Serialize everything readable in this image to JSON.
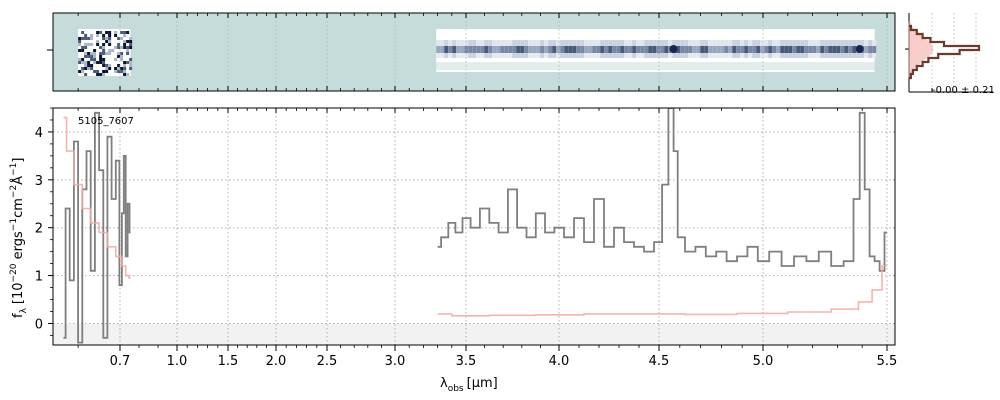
{
  "chart_data": [
    {
      "type": "heatmap",
      "panel": "2d-spectrum",
      "background_color": "#c5dcda",
      "trace_color": "#1a2550",
      "segments": [
        {
          "x_range": [
            0.6,
            0.755
          ],
          "kind": "noise"
        },
        {
          "x_range": [
            3.29,
            5.45
          ],
          "kind": "trace"
        }
      ],
      "bright_knots_um": [
        4.57,
        5.39
      ]
    },
    {
      "type": "line",
      "panel": "1d-spectrum",
      "label": "5105_7607",
      "xlabel_main": "λ",
      "xlabel_sub": "obs",
      "xlabel_unit": "[μm]",
      "ylabel": "f_λ [10^-20 ergs^-1cm^-2Å^-1]",
      "ylabel_parts": {
        "f": "f",
        "lambda": "λ",
        "bracket_open": "[10",
        "exp1": "−20",
        "ergs": " ergs",
        "exp2": "−1",
        "cm": "cm",
        "exp3": "−2",
        "ang": "Å",
        "exp4": "−1",
        "bracket_close": "]"
      },
      "ylim": [
        -0.45,
        4.5
      ],
      "yticks": [
        "0",
        "1",
        "2",
        "3",
        "4"
      ],
      "xticks_um": [
        0.7,
        1.0,
        1.5,
        2.0,
        2.5,
        3.0,
        3.5,
        4.0,
        4.5,
        5.0,
        5.5
      ],
      "xtick_labels": [
        "0.7",
        "1.0",
        "1.5",
        "2.0",
        "2.5",
        "3.0",
        "3.5",
        "4.0",
        "4.5",
        "5.0",
        "5.5"
      ],
      "grid": true,
      "series": [
        {
          "role": "flux",
          "color": "#7f7f7f",
          "x": [
            0.565,
            0.575,
            0.585,
            0.595,
            0.605,
            0.615,
            0.625,
            0.635,
            0.645,
            0.655,
            0.665,
            0.675,
            0.685,
            0.695,
            0.705,
            0.715,
            0.725,
            0.735,
            0.745,
            0.755,
            3.3,
            3.35,
            3.4,
            3.45,
            3.5,
            3.55,
            3.6,
            3.65,
            3.7,
            3.75,
            3.8,
            3.85,
            3.9,
            3.95,
            4.0,
            4.05,
            4.1,
            4.15,
            4.2,
            4.25,
            4.3,
            4.35,
            4.4,
            4.45,
            4.5,
            4.53,
            4.56,
            4.58,
            4.6,
            4.65,
            4.7,
            4.75,
            4.8,
            4.85,
            4.9,
            4.95,
            5.0,
            5.05,
            5.1,
            5.15,
            5.2,
            5.25,
            5.3,
            5.35,
            5.38,
            5.4,
            5.42,
            5.44,
            5.46,
            5.48,
            5.5
          ],
          "y": [
            -0.3,
            2.4,
            0.9,
            3.8,
            -0.4,
            2.8,
            3.6,
            1.1,
            4.4,
            3.2,
            -0.3,
            3.9,
            2.6,
            3.4,
            0.8,
            2.3,
            3.5,
            1.4,
            2.5,
            1.9,
            1.6,
            1.8,
            2.1,
            1.9,
            2.2,
            2.0,
            2.4,
            2.1,
            1.9,
            2.8,
            2.0,
            1.8,
            2.3,
            1.9,
            2.0,
            1.8,
            2.2,
            1.7,
            2.6,
            1.6,
            2.0,
            1.7,
            1.6,
            1.5,
            1.7,
            2.9,
            4.5,
            3.6,
            1.8,
            1.5,
            1.6,
            1.4,
            1.5,
            1.3,
            1.4,
            1.6,
            1.3,
            1.5,
            1.2,
            1.4,
            1.3,
            1.5,
            1.2,
            1.3,
            2.6,
            4.4,
            2.8,
            1.4,
            1.3,
            1.1,
            1.9
          ]
        },
        {
          "role": "error",
          "color": "#f4a7a3",
          "x": [
            0.565,
            0.58,
            0.6,
            0.62,
            0.64,
            0.66,
            0.68,
            0.7,
            0.72,
            0.74,
            0.755,
            3.3,
            3.5,
            3.75,
            4.0,
            4.25,
            4.5,
            4.75,
            5.0,
            5.2,
            5.35,
            5.42,
            5.46,
            5.5
          ],
          "y": [
            4.3,
            3.6,
            2.9,
            2.4,
            2.1,
            1.9,
            1.6,
            1.4,
            1.2,
            1.0,
            0.95,
            0.2,
            0.16,
            0.17,
            0.18,
            0.2,
            0.2,
            0.19,
            0.21,
            0.24,
            0.3,
            0.45,
            0.7,
            1.2
          ]
        }
      ]
    },
    {
      "type": "line",
      "panel": "histogram",
      "annotation": "-0.00 ± 0.21",
      "series": [
        {
          "role": "data-histogram",
          "color": "#6b3a2a"
        },
        {
          "role": "normal",
          "color": "#f4a7a3"
        }
      ]
    }
  ]
}
